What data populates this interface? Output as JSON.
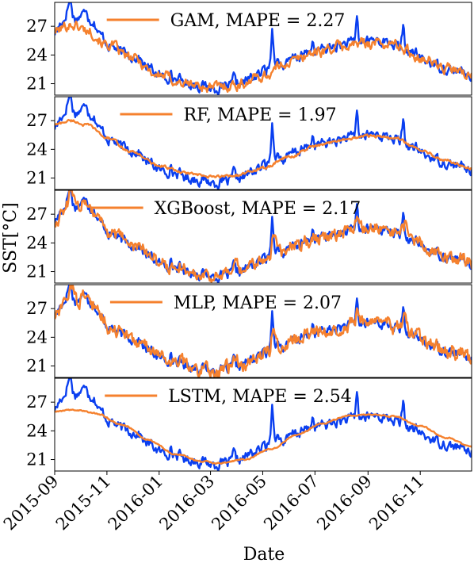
{
  "chart_data": {
    "type": "line",
    "ylabel": "SST[°C]",
    "xlabel": "Date",
    "x_range": [
      "2015-09-01",
      "2016-12-31"
    ],
    "x_ticks": [
      "2015-09",
      "2015-11",
      "2016-01",
      "2016-03",
      "2016-05",
      "2016-07",
      "2016-09",
      "2016-11"
    ],
    "y_ticks": [
      21,
      24,
      27
    ],
    "ylim": [
      19.8,
      29.5
    ],
    "grid": false,
    "legend_placement": "top-center",
    "colors": {
      "observed": "#0a3ff0",
      "predicted": "#f5812e"
    },
    "observed_keypoints": [
      [
        "2015-09-01",
        26.3
      ],
      [
        "2015-09-10",
        27.5
      ],
      [
        "2015-09-18",
        29.0
      ],
      [
        "2015-09-25",
        27.8
      ],
      [
        "2015-10-05",
        28.3
      ],
      [
        "2015-10-15",
        27.6
      ],
      [
        "2015-10-25",
        26.0
      ],
      [
        "2015-11-05",
        25.0
      ],
      [
        "2015-11-20",
        24.2
      ],
      [
        "2015-12-05",
        23.8
      ],
      [
        "2015-12-20",
        22.6
      ],
      [
        "2016-01-05",
        21.7
      ],
      [
        "2016-01-20",
        21.5
      ],
      [
        "2016-02-05",
        21.0
      ],
      [
        "2016-02-20",
        20.8
      ],
      [
        "2016-03-05",
        20.5
      ],
      [
        "2016-03-20",
        20.6
      ],
      [
        "2016-04-05",
        21.0
      ],
      [
        "2016-04-20",
        21.7
      ],
      [
        "2016-05-05",
        22.4
      ],
      [
        "2016-05-15",
        23.6
      ],
      [
        "2016-05-25",
        22.9
      ],
      [
        "2016-06-10",
        23.8
      ],
      [
        "2016-06-25",
        24.2
      ],
      [
        "2016-07-10",
        24.6
      ],
      [
        "2016-07-25",
        24.9
      ],
      [
        "2016-08-10",
        25.2
      ],
      [
        "2016-08-25",
        25.4
      ],
      [
        "2016-09-10",
        25.6
      ],
      [
        "2016-09-25",
        25.3
      ],
      [
        "2016-10-10",
        24.8
      ],
      [
        "2016-10-25",
        24.1
      ],
      [
        "2016-11-10",
        23.3
      ],
      [
        "2016-11-25",
        22.8
      ],
      [
        "2016-12-10",
        22.4
      ],
      [
        "2016-12-31",
        21.8
      ]
    ],
    "observed_spikes": [
      [
        "2015-09-19",
        1.6
      ],
      [
        "2015-10-08",
        0.9
      ],
      [
        "2016-05-12",
        3.4
      ],
      [
        "2016-08-19",
        2.6
      ],
      [
        "2016-10-12",
        2.1
      ],
      [
        "2016-06-28",
        1.2
      ],
      [
        "2016-03-28",
        0.8
      ],
      [
        "2016-01-14",
        0.7
      ]
    ],
    "series": [
      {
        "legend": "GAM, MAPE = 2.27",
        "method": "smooth",
        "noise": 0.45,
        "keypoints": [
          [
            "2015-09-01",
            26.5
          ],
          [
            "2015-09-20",
            27.2
          ],
          [
            "2015-10-10",
            26.6
          ],
          [
            "2015-11-01",
            25.1
          ],
          [
            "2015-12-01",
            23.6
          ],
          [
            "2016-01-01",
            21.9
          ],
          [
            "2016-02-01",
            21.0
          ],
          [
            "2016-03-01",
            20.6
          ],
          [
            "2016-04-01",
            20.9
          ],
          [
            "2016-05-01",
            21.8
          ],
          [
            "2016-06-01",
            23.3
          ],
          [
            "2016-07-01",
            24.3
          ],
          [
            "2016-08-01",
            24.9
          ],
          [
            "2016-09-01",
            25.3
          ],
          [
            "2016-10-01",
            25.1
          ],
          [
            "2016-11-01",
            23.8
          ],
          [
            "2016-12-01",
            22.6
          ],
          [
            "2016-12-31",
            21.8
          ]
        ]
      },
      {
        "legend": "RF, MAPE = 1.97",
        "method": "smooth",
        "noise": 0.12,
        "keypoints": [
          [
            "2015-09-01",
            26.6
          ],
          [
            "2015-09-20",
            27.0
          ],
          [
            "2015-10-10",
            26.5
          ],
          [
            "2015-11-01",
            25.2
          ],
          [
            "2015-12-01",
            23.7
          ],
          [
            "2016-01-01",
            22.3
          ],
          [
            "2016-02-01",
            21.5
          ],
          [
            "2016-03-01",
            21.1
          ],
          [
            "2016-04-01",
            21.3
          ],
          [
            "2016-05-01",
            22.0
          ],
          [
            "2016-06-01",
            23.2
          ],
          [
            "2016-07-01",
            24.3
          ],
          [
            "2016-08-01",
            25.0
          ],
          [
            "2016-09-01",
            25.4
          ],
          [
            "2016-10-01",
            25.2
          ],
          [
            "2016-11-01",
            24.0
          ],
          [
            "2016-12-01",
            22.8
          ],
          [
            "2016-12-31",
            22.0
          ]
        ]
      },
      {
        "legend": "XGBoost, MAPE = 2.17",
        "method": "follow",
        "noise": 0.55,
        "lag_days": 2
      },
      {
        "legend": "MLP, MAPE = 2.07",
        "method": "follow",
        "noise": 0.6,
        "lag_days": 2
      },
      {
        "legend": "LSTM, MAPE = 2.54",
        "method": "smooth",
        "noise": 0.06,
        "keypoints": [
          [
            "2015-09-01",
            26.0
          ],
          [
            "2015-09-25",
            26.2
          ],
          [
            "2015-10-20",
            25.8
          ],
          [
            "2015-11-20",
            24.6
          ],
          [
            "2015-12-20",
            23.0
          ],
          [
            "2016-01-20",
            21.6
          ],
          [
            "2016-02-20",
            20.8
          ],
          [
            "2016-03-10",
            20.6
          ],
          [
            "2016-04-10",
            21.0
          ],
          [
            "2016-05-10",
            22.1
          ],
          [
            "2016-06-10",
            23.6
          ],
          [
            "2016-07-10",
            24.8
          ],
          [
            "2016-08-10",
            25.6
          ],
          [
            "2016-09-05",
            25.7
          ],
          [
            "2016-10-01",
            25.5
          ],
          [
            "2016-11-01",
            24.5
          ],
          [
            "2016-12-01",
            23.3
          ],
          [
            "2016-12-31",
            22.3
          ]
        ]
      }
    ]
  }
}
